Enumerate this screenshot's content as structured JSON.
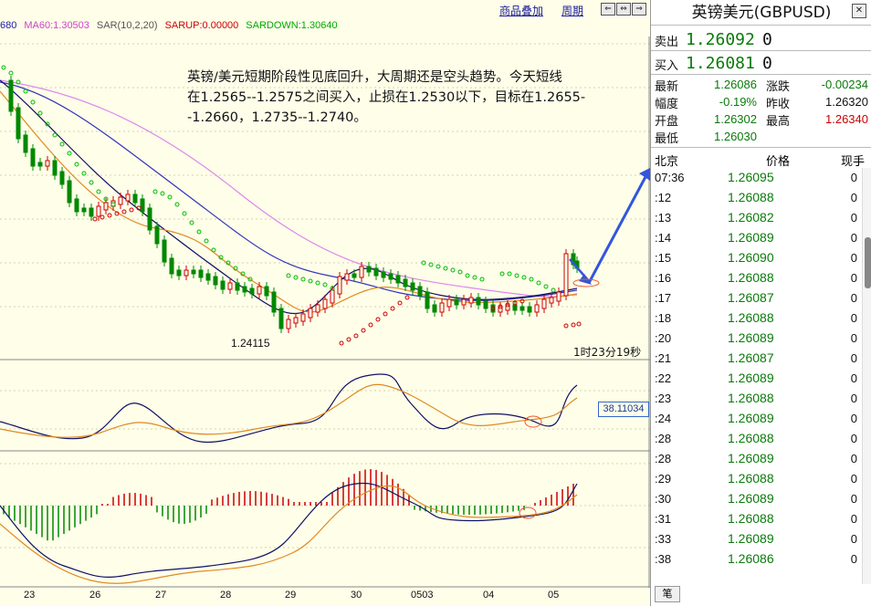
{
  "toolbar": {
    "overlay_label": "商品叠加",
    "period_label": "周期",
    "nav_buttons": [
      "⇐",
      "⇔",
      "⇒"
    ]
  },
  "indicator_bar": {
    "prefix": "680",
    "ma60": "MA60:1.30503",
    "sar": "SAR(10,2,20)",
    "sarup": "SARUP:0.00000",
    "sardown": "SARDOWN:1.30640",
    "colors": {
      "ma60": "#cc44cc",
      "sar": "#555555",
      "sarup": "#cc0000",
      "sardown": "#00aa00"
    }
  },
  "annotation": {
    "lines": [
      "英镑/美元短期阶段性见底回升，大周期还是空头趋势。今天短线",
      "在1.2565--1.2575之间买入，止损在1.2530以下，目标在1.2655-",
      "-1.2660，1.2735--1.2740。"
    ]
  },
  "chart_labels": {
    "low_price": "1.24115",
    "countdown": "1时23分19秒",
    "osc_value": "38.11034"
  },
  "date_axis": [
    "23",
    "26",
    "27",
    "28",
    "29",
    "30",
    "0503",
    "04",
    "05"
  ],
  "panel": {
    "title": "英镑美元(GBPUSD)",
    "close_icon": "close-icon",
    "sell_label": "卖出",
    "sell_price": "1.26092",
    "sell_vol": "0",
    "buy_label": "买入",
    "buy_price": "1.26081",
    "buy_vol": "0",
    "stats": {
      "latest_label": "最新",
      "latest_value": "1.26086",
      "change_label": "涨跌",
      "change_value": "-0.00234",
      "amp_label": "幅度",
      "amp_value": "-0.19%",
      "prevclose_label": "昨收",
      "prevclose_value": "1.26320",
      "open_label": "开盘",
      "open_value": "1.26302",
      "high_label": "最高",
      "high_value": "1.26340",
      "low_label": "最低",
      "low_value": "1.26030"
    },
    "ticks_header": {
      "time": "北京",
      "price": "价格",
      "vol": "现手"
    },
    "ticks": [
      {
        "time": "07:36",
        "price": "1.26095",
        "vol": "0"
      },
      {
        "time": ":12",
        "price": "1.26088",
        "vol": "0"
      },
      {
        "time": ":13",
        "price": "1.26082",
        "vol": "0"
      },
      {
        "time": ":14",
        "price": "1.26089",
        "vol": "0"
      },
      {
        "time": ":15",
        "price": "1.26090",
        "vol": "0"
      },
      {
        "time": ":16",
        "price": "1.26088",
        "vol": "0"
      },
      {
        "time": ":17",
        "price": "1.26087",
        "vol": "0"
      },
      {
        "time": ":18",
        "price": "1.26088",
        "vol": "0"
      },
      {
        "time": ":20",
        "price": "1.26089",
        "vol": "0"
      },
      {
        "time": ":21",
        "price": "1.26087",
        "vol": "0"
      },
      {
        "time": ":22",
        "price": "1.26089",
        "vol": "0"
      },
      {
        "time": ":23",
        "price": "1.26088",
        "vol": "0"
      },
      {
        "time": ":24",
        "price": "1.26089",
        "vol": "0"
      },
      {
        "time": ":28",
        "price": "1.26088",
        "vol": "0"
      },
      {
        "time": ":28",
        "price": "1.26089",
        "vol": "0"
      },
      {
        "time": ":29",
        "price": "1.26088",
        "vol": "0"
      },
      {
        "time": ":30",
        "price": "1.26089",
        "vol": "0"
      },
      {
        "time": ":31",
        "price": "1.26088",
        "vol": "0"
      },
      {
        "time": ":33",
        "price": "1.26089",
        "vol": "0"
      },
      {
        "time": ":38",
        "price": "1.26086",
        "vol": "0"
      }
    ],
    "bottom_tab": "笔"
  },
  "colors": {
    "up_candle": "#cc0000",
    "down_candle": "#008800",
    "price_green": "#0a7a0a",
    "price_red": "#cc0000",
    "accent_blue": "#3355dd"
  }
}
